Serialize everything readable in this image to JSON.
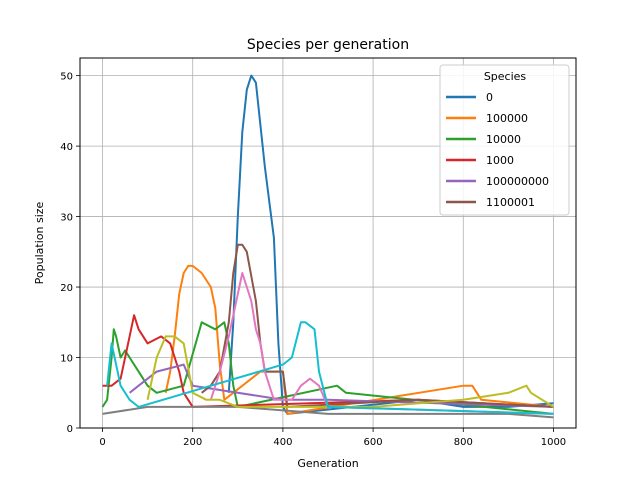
{
  "chart_data": {
    "type": "line",
    "title": "Species per generation",
    "xlabel": "Generation",
    "ylabel": "Population size",
    "xlim": [
      -50,
      1050
    ],
    "ylim": [
      0,
      52.5
    ],
    "xticks": [
      0,
      200,
      400,
      600,
      800,
      1000
    ],
    "yticks": [
      0,
      10,
      20,
      30,
      40,
      50
    ],
    "grid": true,
    "legend": {
      "title": "Species",
      "placement": "top-right"
    },
    "series": [
      {
        "name": "0",
        "color": "#1f77b4",
        "x": [
          280,
          290,
          300,
          310,
          320,
          330,
          340,
          350,
          360,
          370,
          380,
          390,
          400,
          410,
          700,
          800,
          900,
          1000
        ],
        "y": [
          5,
          15,
          30,
          42,
          48,
          50,
          49,
          43,
          37,
          32,
          27,
          12,
          3,
          2,
          4,
          3,
          3,
          3.5
        ]
      },
      {
        "name": "100000",
        "color": "#ff7f0e",
        "x": [
          140,
          150,
          160,
          170,
          180,
          190,
          200,
          220,
          240,
          250,
          260,
          270,
          350,
          400,
          410,
          800,
          820,
          840,
          1000
        ],
        "y": [
          5,
          8,
          13,
          19,
          22,
          23,
          23,
          22,
          20,
          17,
          9,
          4,
          8,
          8,
          2,
          6,
          6,
          4,
          3
        ]
      },
      {
        "name": "10000",
        "color": "#2ca02c",
        "x": [
          0,
          10,
          20,
          25,
          30,
          40,
          50,
          60,
          80,
          100,
          120,
          180,
          220,
          250,
          270,
          280,
          290,
          300,
          520,
          540,
          1000
        ],
        "y": [
          3,
          4,
          10,
          14,
          13,
          10,
          11,
          10,
          8,
          6,
          5,
          6,
          15,
          14,
          15,
          12,
          6,
          3,
          6,
          5,
          2
        ]
      },
      {
        "name": "1000",
        "color": "#d62728",
        "x": [
          0,
          20,
          40,
          60,
          70,
          80,
          100,
          130,
          150,
          170,
          180,
          200,
          700,
          1000
        ],
        "y": [
          6,
          6,
          7,
          13,
          16,
          14,
          12,
          13,
          12,
          8,
          5,
          3,
          4,
          3
        ]
      },
      {
        "name": "100000000",
        "color": "#9467bd",
        "x": [
          60,
          80,
          120,
          180,
          200,
          400,
          500,
          1000
        ],
        "y": [
          5,
          6,
          8,
          9,
          6,
          4,
          4,
          3
        ]
      },
      {
        "name": "1100001",
        "color": "#8c564b",
        "x": [
          220,
          240,
          260,
          280,
          290,
          300,
          310,
          320,
          340,
          350,
          360,
          380,
          400,
          410,
          700,
          1000
        ],
        "y": [
          5,
          6,
          8,
          15,
          22,
          26,
          26,
          25,
          18,
          12,
          8,
          8,
          8,
          3,
          4,
          3
        ]
      },
      {
        "color": "#e377c2",
        "x": [
          240,
          260,
          280,
          300,
          310,
          320,
          330,
          340,
          350,
          360,
          380,
          420,
          440,
          460,
          480,
          500,
          1000
        ],
        "y": [
          4,
          8,
          13,
          19,
          22,
          20,
          18,
          14,
          12,
          8,
          4,
          4,
          6,
          7,
          6,
          3,
          2
        ]
      },
      {
        "color": "#7f7f7f",
        "x": [
          0,
          100,
          300,
          500,
          700,
          900,
          1000
        ],
        "y": [
          2,
          3,
          3,
          2,
          2,
          2,
          1.5
        ]
      },
      {
        "color": "#bcbd22",
        "x": [
          100,
          120,
          140,
          160,
          180,
          200,
          230,
          260,
          300,
          600,
          800,
          900,
          940,
          950,
          1000
        ],
        "y": [
          4,
          10,
          13,
          13,
          12,
          5,
          4,
          4,
          3,
          3,
          4,
          5,
          6,
          5,
          3
        ]
      },
      {
        "color": "#17becf",
        "x": [
          10,
          20,
          30,
          40,
          60,
          80,
          400,
          420,
          440,
          450,
          470,
          480,
          500,
          1000
        ],
        "y": [
          6,
          12,
          9,
          6,
          4,
          3,
          9,
          10,
          15,
          15,
          14,
          8,
          3,
          2
        ]
      }
    ]
  }
}
